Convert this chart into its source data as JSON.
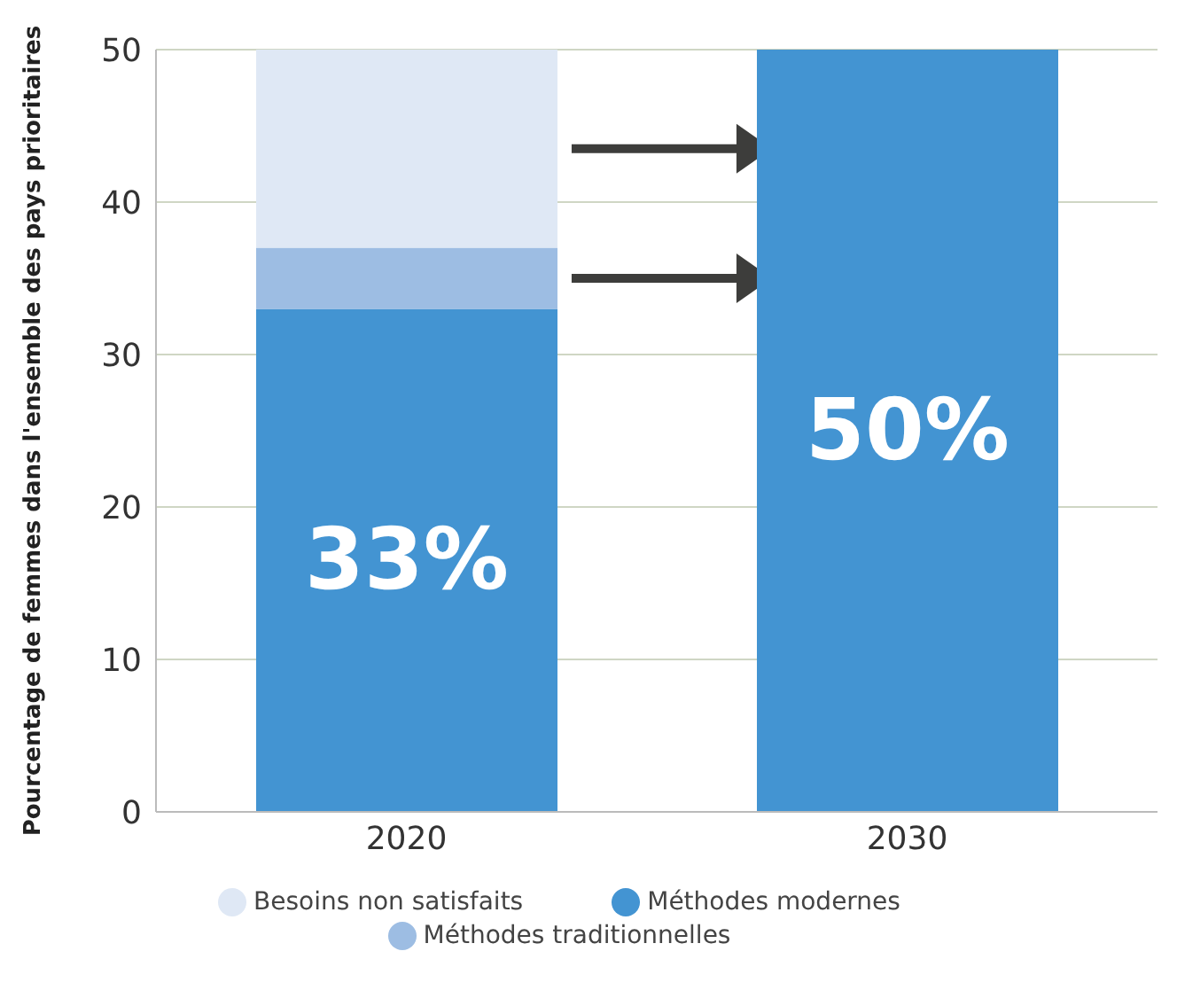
{
  "chart_data": {
    "type": "bar",
    "stacked": true,
    "categories": [
      "2020",
      "2030"
    ],
    "series": [
      {
        "name": "Méthodes modernes",
        "color": "#4394d2",
        "values": [
          33,
          50
        ],
        "value_labels": [
          "33%",
          "50%"
        ]
      },
      {
        "name": "Méthodes traditionnelles",
        "color": "#9dbde3",
        "values": [
          4,
          0
        ]
      },
      {
        "name": "Besoins non satisfaits",
        "color": "#dfe8f5",
        "values": [
          13,
          0
        ]
      }
    ],
    "ylabel": "Pourcentage de femmes dans l'ensemble des pays prioritaires",
    "ylim": [
      0,
      50
    ],
    "yticks": [
      0,
      10,
      20,
      30,
      40,
      50
    ],
    "grid": "y",
    "legend": "bottom"
  }
}
